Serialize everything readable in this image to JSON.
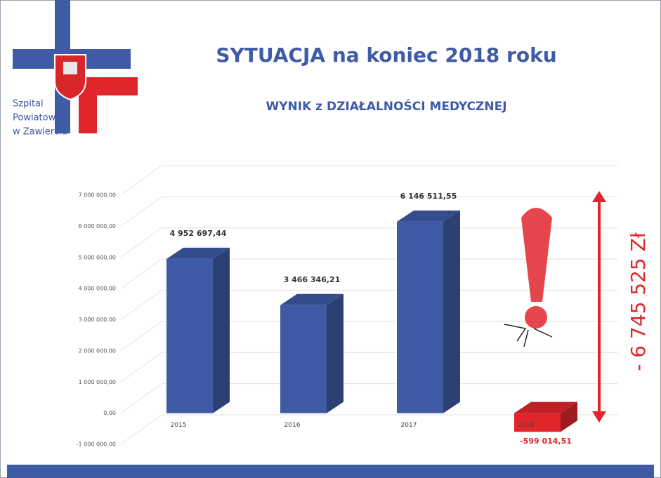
{
  "logo": {
    "lines": [
      "Szpital",
      "Powiatowy",
      "w Zawierciu"
    ]
  },
  "chart_data": {
    "type": "bar3d",
    "title": "SYTUACJA na koniec 2018 roku",
    "subtitle": "WYNIK z DZIAŁALNOŚCI MEDYCZNEJ",
    "annotation": "- 6 745 525 Zł",
    "categories": [
      "2015",
      "2016",
      "2017",
      "2018"
    ],
    "values": [
      4952697.44,
      3466346.21,
      6146511.55,
      -599014.51
    ],
    "value_labels": [
      "4 952 697,44",
      "3 466 346,21",
      "6 146 511,55",
      "-599 014,51"
    ],
    "colors": [
      "#3f5ba6",
      "#3f5ba6",
      "#3f5ba6",
      "#e0262b"
    ],
    "ylim": [
      -1000000,
      7000000
    ],
    "yticks": [
      {
        "value": -1000000,
        "label": "-1 000 000,00"
      },
      {
        "value": 0,
        "label": "0,00"
      },
      {
        "value": 1000000,
        "label": "1 000 000,00"
      },
      {
        "value": 2000000,
        "label": "2 000 000,00"
      },
      {
        "value": 3000000,
        "label": "3 000 000,00"
      },
      {
        "value": 4000000,
        "label": "4 000 000,00"
      },
      {
        "value": 5000000,
        "label": "5 000 000,00"
      },
      {
        "value": 6000000,
        "label": "6 000 000,00"
      },
      {
        "value": 7000000,
        "label": "7 000 000,00"
      }
    ],
    "grid": true
  }
}
